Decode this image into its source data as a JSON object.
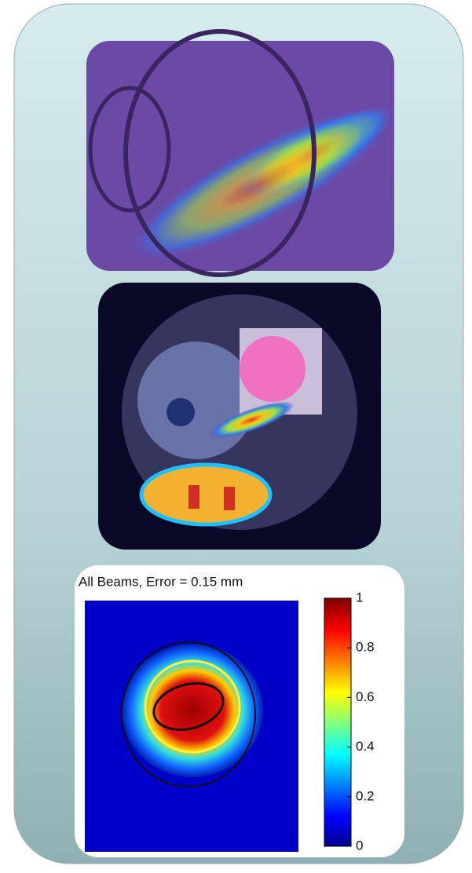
{
  "chart_data": {
    "type": "heatmap",
    "title": "All Beams, Error = 0.15 mm",
    "clim": [
      0,
      1
    ],
    "cticks": [
      0,
      0.2,
      0.4,
      0.6,
      0.8,
      1
    ]
  }
}
